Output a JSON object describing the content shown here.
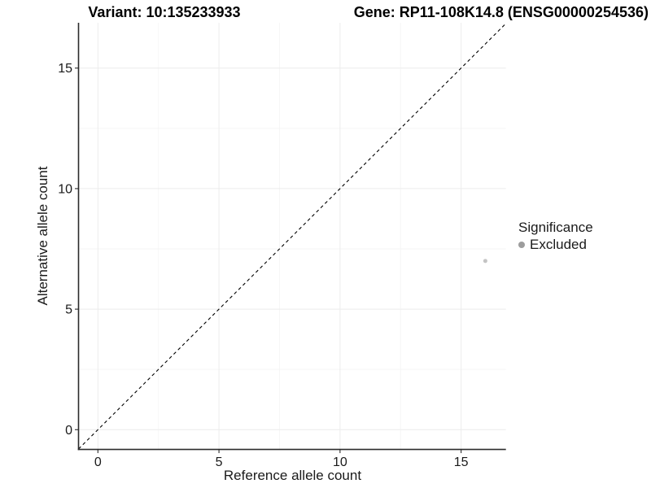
{
  "chart_data": {
    "type": "scatter",
    "title_left": "Variant: 10:135233933",
    "title_right": "Gene: RP11-108K14.8 (ENSG00000254536)",
    "xlabel": "Reference allele count",
    "ylabel": "Alternative allele count",
    "xlim": [
      -0.8,
      16.85
    ],
    "ylim": [
      -0.82,
      16.88
    ],
    "x_ticks": [
      0,
      5,
      10,
      15
    ],
    "y_ticks": [
      0,
      5,
      10,
      15
    ],
    "x_minor_ticks": [
      2.5,
      7.5,
      12.5
    ],
    "y_minor_ticks": [
      2.5,
      7.5,
      12.5
    ],
    "grid": "on",
    "identity_line": {
      "type": "dashed",
      "equation": "y = x",
      "color": "#000000"
    },
    "series": [
      {
        "name": "Excluded",
        "points": [
          {
            "x": 16,
            "y": 7
          }
        ],
        "color": "#c4c4c4",
        "point_radius": 2.5
      }
    ],
    "legend": {
      "position": "right",
      "title": "Significance",
      "items": [
        {
          "label": "Excluded",
          "color": "#9d9d9d"
        }
      ]
    },
    "colors": {
      "background": "#ffffff",
      "axis_line": "#2b2b2b",
      "tick_label": "#1a1a1a",
      "grid_major": "#ececec",
      "grid_minor": "#f5f5f5"
    }
  }
}
